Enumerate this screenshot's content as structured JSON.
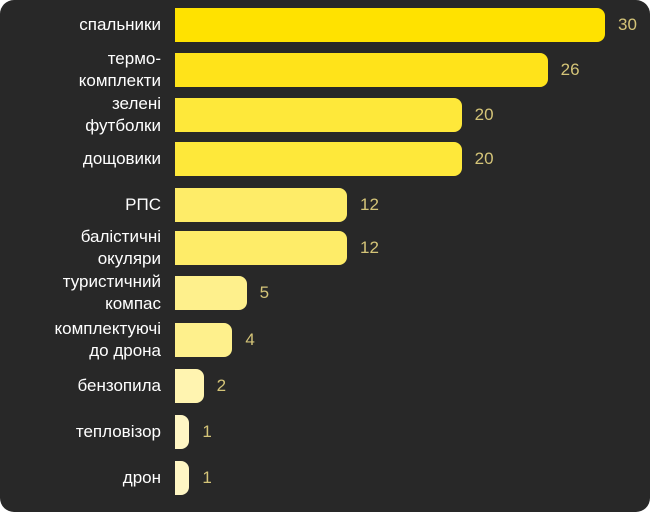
{
  "chart_data": {
    "type": "bar",
    "orientation": "horizontal",
    "title": "",
    "xlabel": "",
    "ylabel": "",
    "categories": [
      "спальники",
      "термо-\nкомплекти",
      "зелені\nфутболки",
      "дощовики",
      "РПС",
      "балістичні\nокуляри",
      "туристичний\nкомпас",
      "комплектуючі\nдо дрона",
      "бензопила",
      "тепловізор",
      "дрон"
    ],
    "values": [
      30,
      26,
      20,
      20,
      12,
      12,
      5,
      4,
      2,
      1,
      1
    ],
    "colors": [
      "#ffe200",
      "#ffe31a",
      "#fee83a",
      "#fee83a",
      "#feec68",
      "#feec68",
      "#fef08c",
      "#fef08c",
      "#fff4b0",
      "#fff6c4",
      "#fff6c4"
    ],
    "xlim": [
      0,
      30
    ],
    "grid": false,
    "data_labels": true
  },
  "style": {
    "background": "#282828",
    "label_color": "#ffffff",
    "value_color": "#d4c478"
  }
}
